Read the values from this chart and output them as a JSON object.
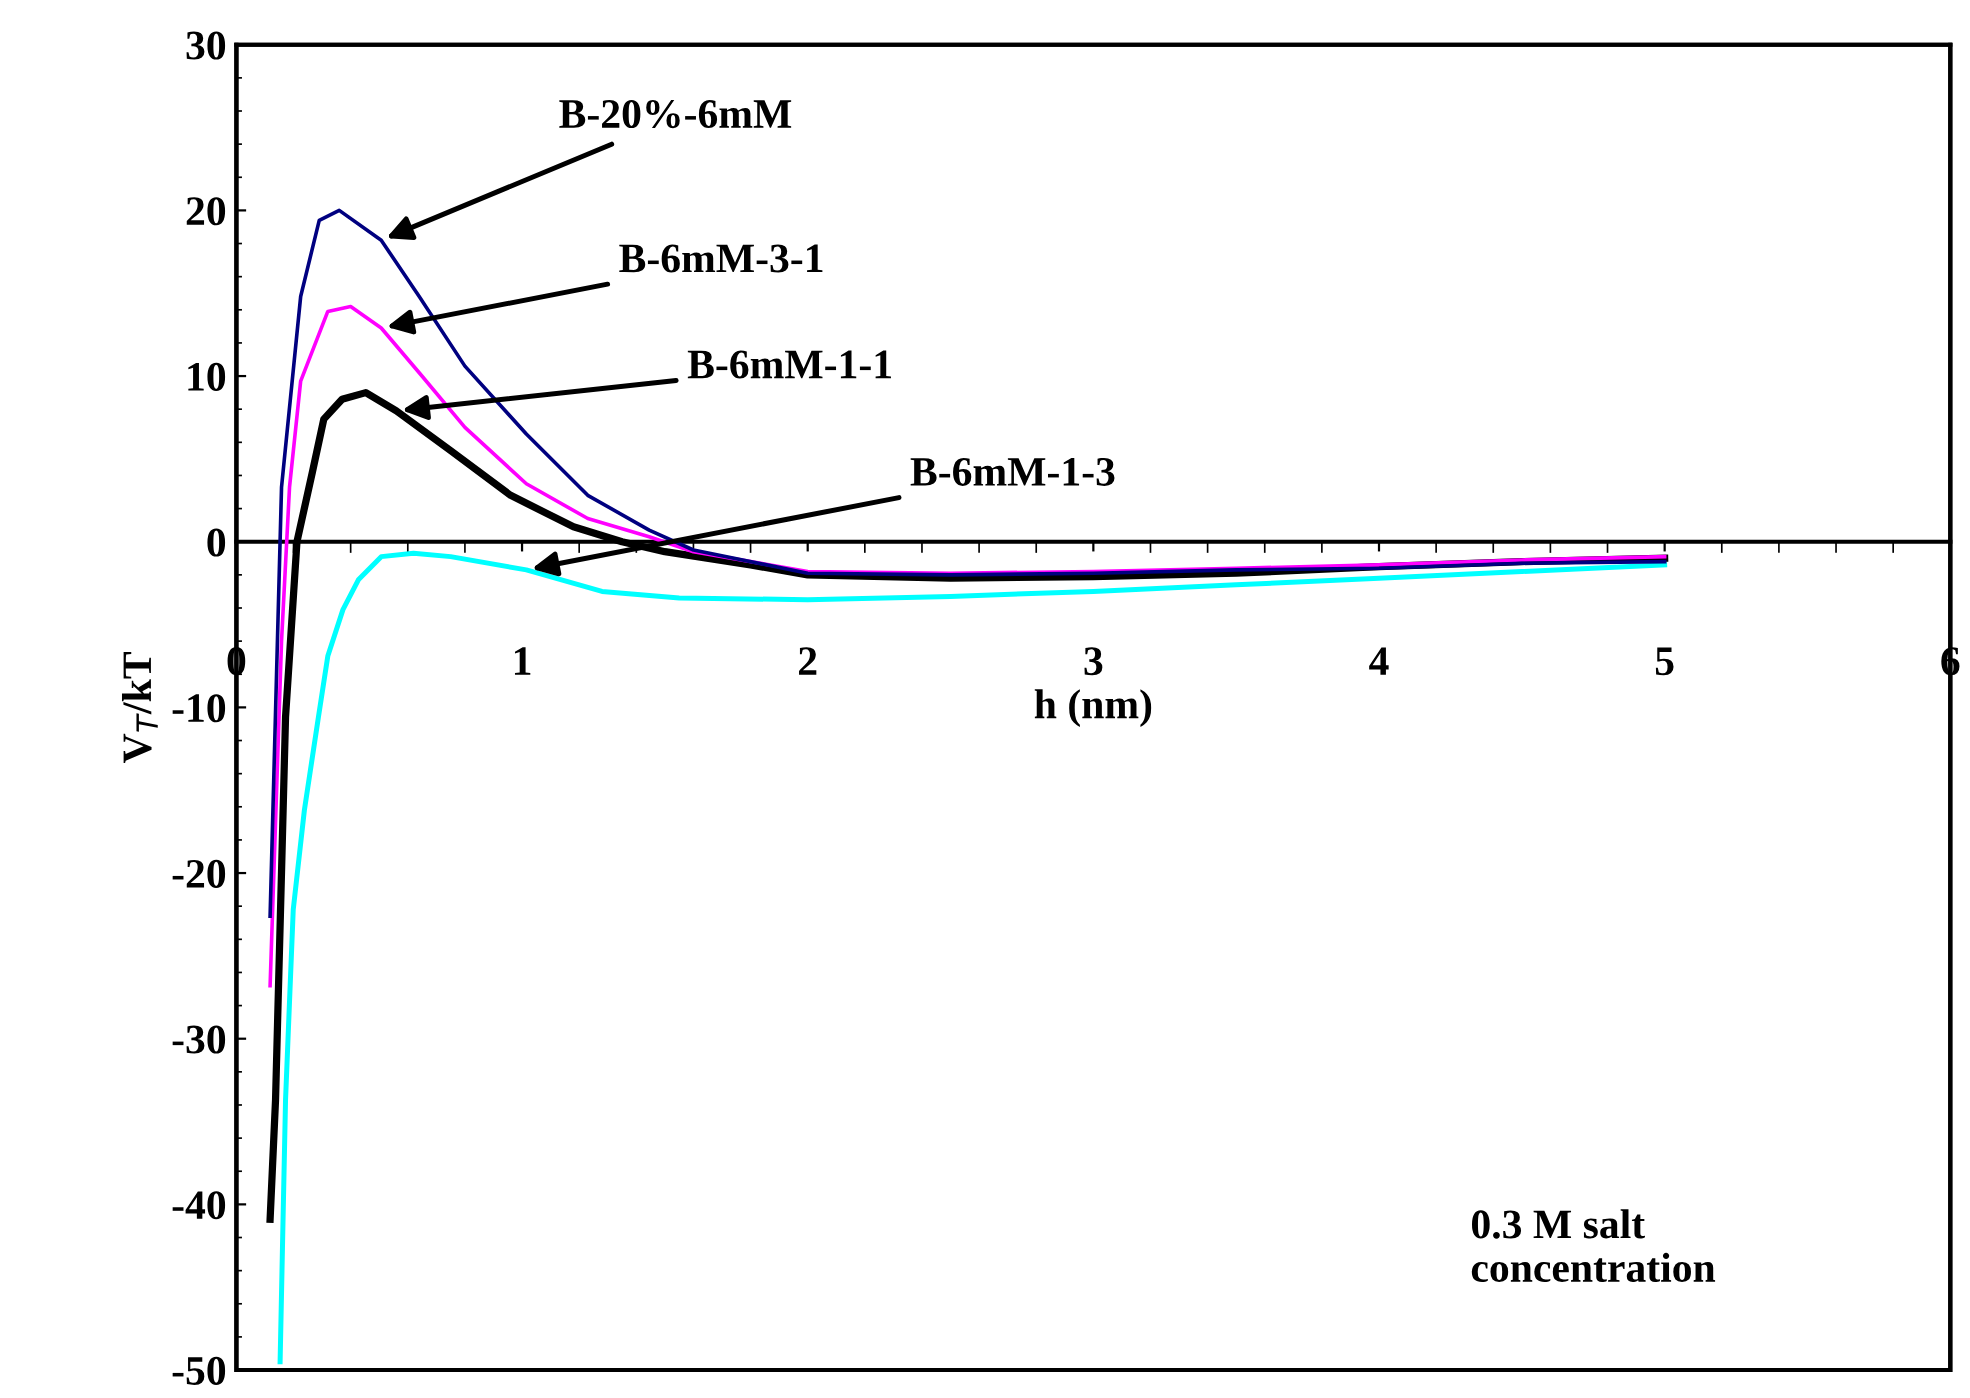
{
  "chart_data": {
    "type": "line",
    "xlabel": "h (nm)",
    "ylabel": "V$_{T}$/kT",
    "xlim": [
      0,
      6
    ],
    "ylim": [
      -50,
      30
    ],
    "xticks": [
      0,
      1,
      2,
      3,
      4,
      5,
      6
    ],
    "yticks": [
      -50,
      -40,
      -30,
      -20,
      -10,
      0,
      10,
      20,
      30
    ],
    "grid": false,
    "legend": false,
    "marker": "none",
    "line_style": "solid",
    "series": [
      {
        "name": "B-20%-6mM",
        "color": "#000080",
        "x": [
          0.118,
          0.158,
          0.225,
          0.29,
          0.36,
          0.507,
          0.64,
          0.8,
          1.015,
          1.23,
          1.445,
          1.6,
          2.0,
          2.5,
          3.0,
          3.5,
          4.0,
          4.5,
          5.0
        ],
        "values": [
          -22.6,
          3.3,
          14.8,
          19.4,
          20.0,
          18.2,
          14.8,
          10.6,
          6.5,
          2.8,
          0.7,
          -0.5,
          -1.9,
          -2.0,
          -1.9,
          -1.7,
          -1.6,
          -1.3,
          -1.2
        ]
      },
      {
        "name": "B-6mM-3-1",
        "color": "#ff00ff",
        "x": [
          0.118,
          0.158,
          0.186,
          0.225,
          0.32,
          0.4,
          0.507,
          0.64,
          0.8,
          1.015,
          1.23,
          1.445,
          1.6,
          2.0,
          2.5,
          3.0,
          3.5,
          4.0,
          4.5,
          5.0
        ],
        "values": [
          -26.8,
          -6.0,
          3.3,
          9.7,
          13.9,
          14.2,
          12.9,
          10.2,
          6.9,
          3.5,
          1.4,
          0.3,
          -0.6,
          -1.8,
          -1.9,
          -1.8,
          -1.6,
          -1.4,
          -1.1,
          -0.9
        ]
      },
      {
        "name": "B-6mM-1-1",
        "color": "#000000",
        "x": [
          0.118,
          0.137,
          0.158,
          0.172,
          0.212,
          0.266,
          0.306,
          0.37,
          0.453,
          0.56,
          0.75,
          0.96,
          1.18,
          1.35,
          1.5,
          1.8,
          2.0,
          2.5,
          3.0,
          3.5,
          4.0,
          4.5,
          5.0
        ],
        "values": [
          -40.9,
          -33.7,
          -19.9,
          -10.6,
          0.0,
          4.2,
          7.4,
          8.6,
          9.0,
          7.9,
          5.5,
          2.8,
          0.9,
          0.0,
          -0.6,
          -1.4,
          -2.0,
          -2.2,
          -2.1,
          -1.9,
          -1.5,
          -1.2,
          -1.0
        ]
      },
      {
        "name": "B-6mM-1-3",
        "color": "#00ffff",
        "x": [
          0.153,
          0.172,
          0.199,
          0.238,
          0.287,
          0.32,
          0.373,
          0.427,
          0.507,
          0.62,
          0.75,
          1.015,
          1.28,
          1.55,
          2.0,
          2.5,
          3.0,
          3.5,
          4.0,
          4.5,
          5.0
        ],
        "values": [
          -49.5,
          -33.7,
          -22.2,
          -16.2,
          -10.6,
          -6.9,
          -4.1,
          -2.3,
          -0.9,
          -0.7,
          -0.9,
          -1.7,
          -3.0,
          -3.4,
          -3.5,
          -3.3,
          -3.0,
          -2.6,
          -2.2,
          -1.8,
          -1.4
        ]
      }
    ],
    "annotations": [
      "0.3 M salt\nconcentration"
    ]
  }
}
